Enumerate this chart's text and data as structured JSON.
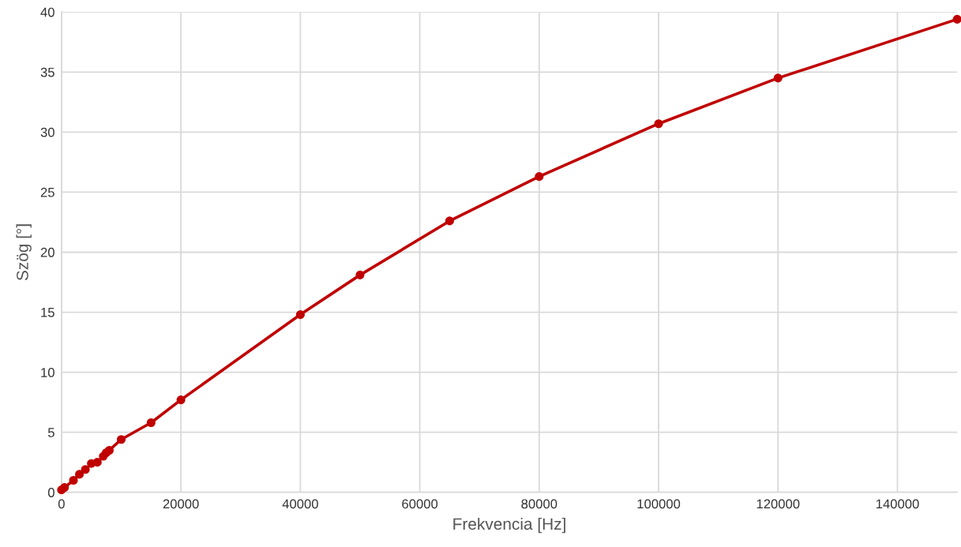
{
  "chart_data": {
    "type": "line",
    "xlabel": "Frekvencia [Hz]",
    "ylabel": "Szög [°]",
    "x": [
      0,
      500,
      2000,
      3000,
      4000,
      5000,
      6000,
      7000,
      7500,
      8000,
      10000,
      15000,
      20000,
      40000,
      50000,
      65000,
      80000,
      100000,
      120000,
      150000
    ],
    "series": [
      {
        "color": "#c00000",
        "values": [
          0.2,
          0.4,
          1.0,
          1.5,
          1.9,
          2.4,
          2.5,
          3.0,
          3.3,
          3.5,
          4.4,
          5.8,
          7.7,
          14.8,
          18.1,
          22.6,
          26.3,
          30.7,
          34.5,
          39.4
        ]
      }
    ],
    "xlim": [
      0,
      150000
    ],
    "xticks": [
      0,
      20000,
      40000,
      60000,
      80000,
      100000,
      120000,
      140000
    ],
    "ylim": [
      0,
      40
    ],
    "yticks": [
      0,
      5,
      10,
      15,
      20,
      25,
      30,
      35,
      40
    ],
    "grid": true,
    "marker": "circle",
    "line_style": "solid",
    "legend": false
  }
}
